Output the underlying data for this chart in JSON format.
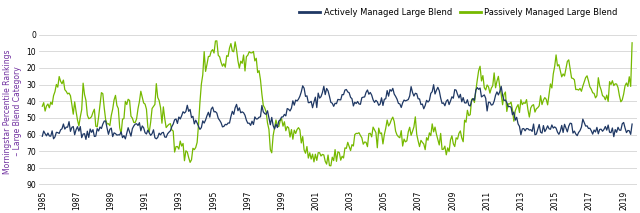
{
  "ylabel": "Morningstar Percentile Rankings\n – Large Blend Category",
  "ylabel_color": "#7030A0",
  "ylim_bottom": 93,
  "ylim_top": 0,
  "yticks": [
    0,
    10,
    20,
    30,
    40,
    50,
    60,
    70,
    80,
    90
  ],
  "active_color": "#1F3864",
  "passive_color": "#76B900",
  "active_label": "Actively Managed Large Blend",
  "passive_label": "Passively Managed Large Blend",
  "background_color": "#ffffff",
  "grid_color": "#cccccc",
  "x_start": 1984.8,
  "x_end": 2019.8,
  "xtick_start": 1985,
  "xtick_end": 2020,
  "xtick_step": 2,
  "figwidth": 6.4,
  "figheight": 2.13,
  "legend_active_first": true
}
